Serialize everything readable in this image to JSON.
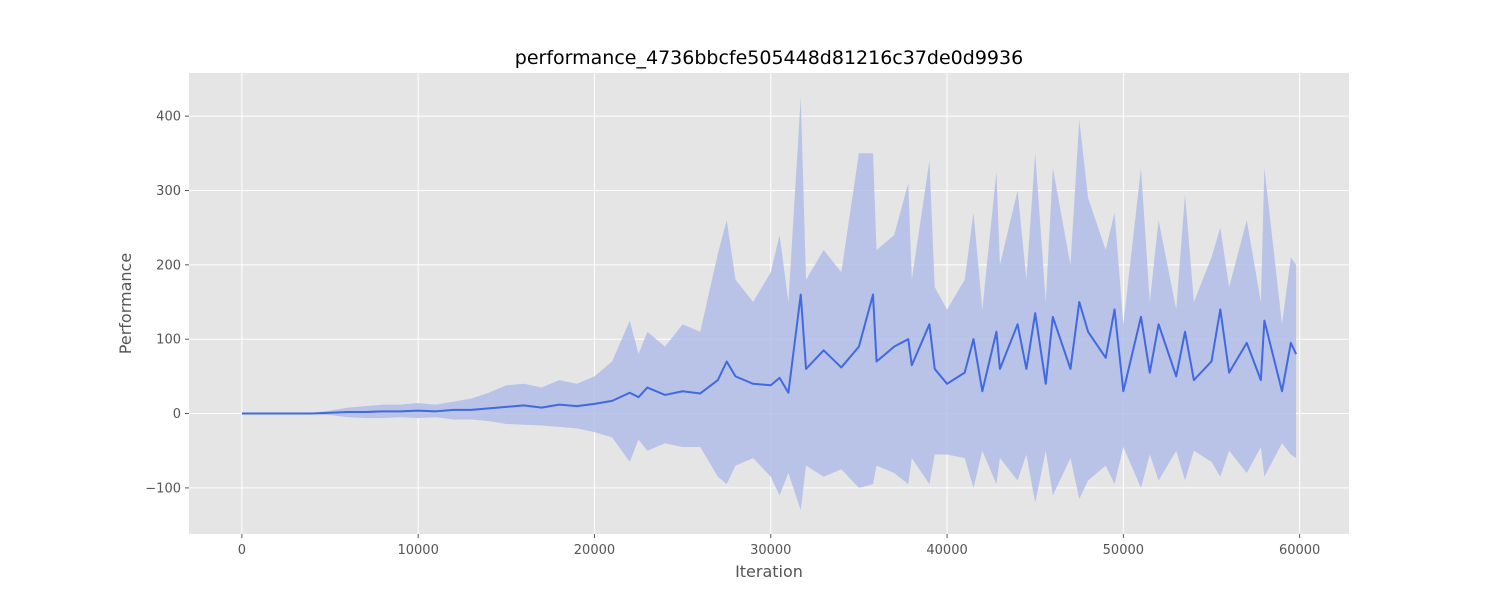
{
  "chart_data": {
    "type": "line",
    "title": "performance_4736bbcfe505448d81216c37de0d9936",
    "xlabel": "Iteration",
    "ylabel": "Performance",
    "xlim": [
      -3000,
      62800
    ],
    "ylim": [
      -162,
      458
    ],
    "xticks": [
      0,
      10000,
      20000,
      30000,
      40000,
      50000,
      60000
    ],
    "yticks": [
      -100,
      0,
      100,
      200,
      300,
      400
    ],
    "grid": true,
    "legend": "none",
    "colors": {
      "background": "#e5e5e5",
      "grid": "#ffffff",
      "line": "#4169e1",
      "band": "#b0bde8",
      "ticks": "#555555"
    },
    "series": [
      {
        "x": [
          0,
          2000,
          4000,
          5000,
          6000,
          7000,
          8000,
          9000,
          10000,
          11000,
          12000,
          13000,
          14000,
          15000,
          16000,
          17000,
          18000,
          19000,
          20000,
          21000,
          22000,
          22500,
          23000,
          24000,
          25000,
          26000,
          27000,
          27500,
          28000,
          29000,
          30000,
          30500,
          31000,
          31700,
          32000,
          33000,
          34000,
          35000,
          35800,
          36000,
          37000,
          37800,
          38000,
          39000,
          39300,
          40000,
          41000,
          41500,
          42000,
          42800,
          43000,
          44000,
          44500,
          45000,
          45600,
          46000,
          47000,
          47500,
          48000,
          49000,
          49500,
          50000,
          51000,
          51500,
          52000,
          53000,
          53500,
          54000,
          55000,
          55500,
          56000,
          57000,
          57800,
          58000,
          59000,
          59500,
          59800
        ],
        "values": [
          0,
          0,
          0,
          1,
          2,
          2,
          3,
          3,
          4,
          3,
          5,
          5,
          7,
          9,
          11,
          8,
          12,
          10,
          13,
          17,
          28,
          22,
          35,
          25,
          30,
          27,
          45,
          70,
          50,
          40,
          38,
          48,
          28,
          160,
          60,
          85,
          62,
          90,
          160,
          70,
          90,
          100,
          65,
          120,
          60,
          40,
          55,
          100,
          30,
          110,
          60,
          120,
          60,
          135,
          40,
          130,
          60,
          150,
          110,
          75,
          140,
          30,
          130,
          55,
          120,
          50,
          110,
          45,
          70,
          140,
          55,
          95,
          45,
          125,
          30,
          95,
          80
        ],
        "upper": [
          0,
          0,
          1,
          4,
          8,
          10,
          12,
          12,
          14,
          12,
          16,
          20,
          28,
          38,
          40,
          35,
          45,
          40,
          50,
          70,
          125,
          80,
          110,
          90,
          120,
          110,
          215,
          260,
          180,
          150,
          190,
          240,
          150,
          425,
          180,
          220,
          190,
          350,
          350,
          220,
          240,
          310,
          180,
          340,
          170,
          140,
          180,
          270,
          140,
          325,
          200,
          300,
          180,
          350,
          150,
          330,
          200,
          395,
          290,
          220,
          270,
          120,
          330,
          150,
          260,
          140,
          295,
          150,
          210,
          250,
          170,
          260,
          150,
          330,
          120,
          210,
          200
        ],
        "lower": [
          0,
          0,
          -1,
          -2,
          -5,
          -6,
          -6,
          -5,
          -6,
          -5,
          -8,
          -8,
          -10,
          -14,
          -15,
          -16,
          -18,
          -20,
          -25,
          -32,
          -65,
          -35,
          -50,
          -40,
          -45,
          -45,
          -85,
          -95,
          -70,
          -60,
          -85,
          -110,
          -80,
          -130,
          -70,
          -85,
          -75,
          -100,
          -95,
          -70,
          -80,
          -95,
          -60,
          -95,
          -55,
          -55,
          -60,
          -100,
          -50,
          -95,
          -60,
          -90,
          -55,
          -120,
          -50,
          -110,
          -60,
          -115,
          -90,
          -70,
          -95,
          -45,
          -100,
          -55,
          -90,
          -50,
          -90,
          -50,
          -65,
          -85,
          -50,
          -80,
          -45,
          -85,
          -40,
          -55,
          -60
        ]
      }
    ]
  }
}
